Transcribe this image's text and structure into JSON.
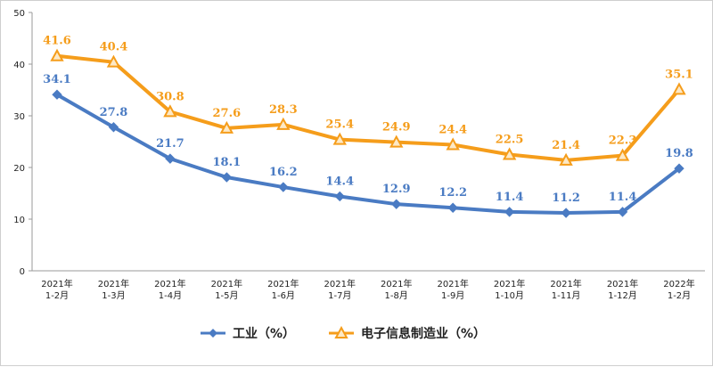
{
  "chart_data": {
    "type": "line",
    "categories": [
      [
        "2021年",
        "1-2月"
      ],
      [
        "2021年",
        "1-3月"
      ],
      [
        "2021年",
        "1-4月"
      ],
      [
        "2021年",
        "1-5月"
      ],
      [
        "2021年",
        "1-6月"
      ],
      [
        "2021年",
        "1-7月"
      ],
      [
        "2021年",
        "1-8月"
      ],
      [
        "2021年",
        "1-9月"
      ],
      [
        "2021年",
        "1-10月"
      ],
      [
        "2021年",
        "1-11月"
      ],
      [
        "2021年",
        "1-12月"
      ],
      [
        "2022年",
        "1-2月"
      ]
    ],
    "series": [
      {
        "name": "工业（%）",
        "color": "#4a7bc3",
        "marker": "diamond",
        "values": [
          34.1,
          27.8,
          21.7,
          18.1,
          16.2,
          14.4,
          12.9,
          12.2,
          11.4,
          11.2,
          11.4,
          19.8
        ],
        "labels": [
          "34.1",
          "27.8",
          "21.7",
          "18.1",
          "16.2",
          "14.4",
          "12.9",
          "12.2",
          "11.4",
          "11.2",
          "11.4",
          "19.8"
        ]
      },
      {
        "name": "电子信息制造业（%）",
        "color": "#f59d1b",
        "marker": "triangle",
        "values": [
          41.6,
          40.4,
          30.8,
          27.6,
          28.3,
          25.4,
          24.9,
          24.4,
          22.5,
          21.4,
          22.3,
          35.1
        ],
        "labels": [
          "41.6",
          "40.4",
          "30.8",
          "27.6",
          "28.3",
          "25.4",
          "24.9",
          "24.4",
          "22.5",
          "21.4",
          "22.3",
          "35.1"
        ]
      }
    ],
    "ylim": [
      0,
      50
    ],
    "yticks": [
      "0",
      "10",
      "20",
      "30",
      "40",
      "50"
    ],
    "grid": false,
    "legend_position": "bottom-center",
    "title": "",
    "xlabel": "",
    "ylabel": ""
  }
}
